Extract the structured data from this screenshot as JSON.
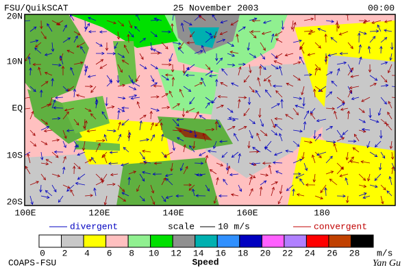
{
  "header": {
    "left": "FSU/QuikSCAT",
    "center": "25 November 2003",
    "right": "00:00"
  },
  "map": {
    "lat_labels": [
      "20N",
      "10N",
      "EQ",
      "10S",
      "20S"
    ],
    "lon_labels": [
      "100E",
      "120E",
      "140E",
      "160E",
      "180"
    ]
  },
  "legend": {
    "divergent": "divergent",
    "scale": "scale",
    "scale_value": "10 m/s",
    "convergent": "convergent"
  },
  "colorbar": {
    "ticks": [
      0,
      2,
      4,
      6,
      8,
      10,
      12,
      14,
      16,
      18,
      20,
      22,
      24,
      26,
      28
    ],
    "unit": "m/s",
    "label": "Speed",
    "colors": [
      "#ffffff",
      "#c8c8c8",
      "#ffff00",
      "#ffc0c0",
      "#90f090",
      "#00e000",
      "#909090",
      "#00b0b0",
      "#3090ff",
      "#0000c0",
      "#ff60ff",
      "#b080ff",
      "#ff0000",
      "#c04000",
      "#000000"
    ]
  },
  "footer": {
    "left": "COAPS-FSU",
    "signature": "Yan Gu"
  }
}
